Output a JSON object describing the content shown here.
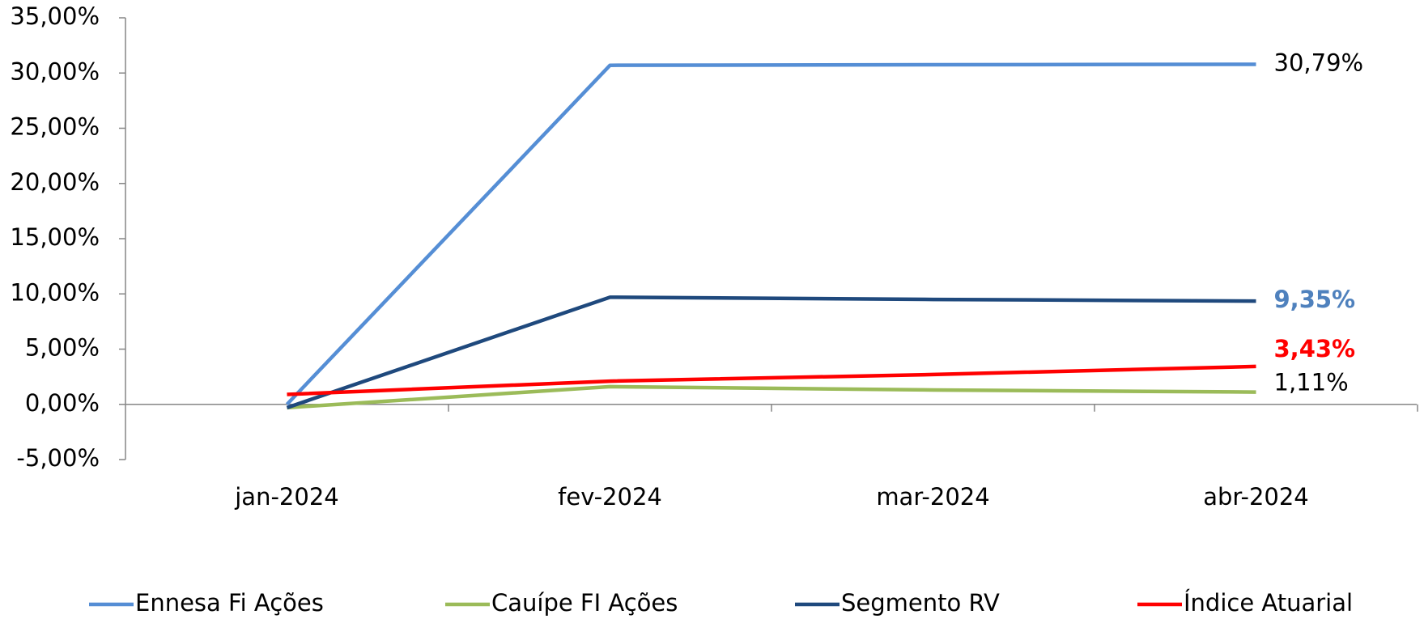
{
  "chart_data": {
    "type": "line",
    "categories": [
      "jan-2024",
      "fev-2024",
      "mar-2024",
      "abr-2024"
    ],
    "series": [
      {
        "name": "Ennesa Fi Ações",
        "color": "#558ed5",
        "values": [
          0,
          30.7,
          30.75,
          30.79
        ],
        "value_labels": [
          null,
          null,
          null,
          "30,79%"
        ],
        "label_color": "#000000",
        "label_bold": false
      },
      {
        "name": "Cauípe FI Ações",
        "color": "#9bbb59",
        "values": [
          -0.3,
          1.6,
          1.3,
          1.11
        ],
        "value_labels": [
          null,
          null,
          null,
          "1,11%"
        ],
        "label_color": "#000000",
        "label_bold": false
      },
      {
        "name": "Segmento RV",
        "color": "#1f497d",
        "values": [
          -0.3,
          9.7,
          9.5,
          9.35
        ],
        "value_labels": [
          null,
          null,
          null,
          "9,35%"
        ],
        "label_color": "#4f81bd",
        "label_bold": true
      },
      {
        "name": "Índice Atuarial",
        "color": "#ff0000",
        "values": [
          0.9,
          2.1,
          2.7,
          3.43
        ],
        "value_labels": [
          null,
          null,
          null,
          "3,43%"
        ],
        "label_color": "#ff0000",
        "label_bold": true
      }
    ],
    "ylim": [
      -5,
      35
    ],
    "yticks": [
      {
        "value": -5,
        "label": "-5,00%"
      },
      {
        "value": 0,
        "label": "0,00%"
      },
      {
        "value": 5,
        "label": "5,00%"
      },
      {
        "value": 10,
        "label": "10,00%"
      },
      {
        "value": 15,
        "label": "15,00%"
      },
      {
        "value": 20,
        "label": "20,00%"
      },
      {
        "value": 25,
        "label": "25,00%"
      },
      {
        "value": 30,
        "label": "30,00%"
      },
      {
        "value": 35,
        "label": "35,00%"
      }
    ],
    "grid": false,
    "legend": "bottom"
  }
}
